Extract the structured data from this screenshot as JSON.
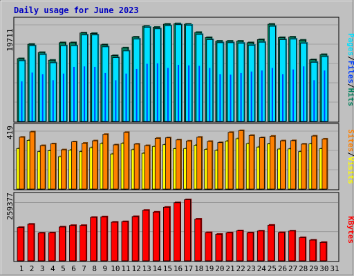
{
  "chart_data": {
    "type": "bar",
    "title": "Daily usage for June 2023",
    "colors": {
      "hits": "#00805c",
      "files": "#0040ff",
      "pages": "#00e0ff",
      "visits": "#ffff00",
      "sites": "#ff8000",
      "kbytes": "#ff0000",
      "background": "#c0c0c0",
      "weekend_day": "#00805c",
      "title": "#0000c0"
    },
    "legend": {
      "top": [
        {
          "text": "Pages",
          "key": "pages"
        },
        {
          "text": "/",
          "key": "sep"
        },
        {
          "text": "Files",
          "key": "files"
        },
        {
          "text": "/",
          "key": "sep"
        },
        {
          "text": "Hits",
          "key": "hits"
        }
      ],
      "middle": [
        {
          "text": "Sites",
          "key": "sites"
        },
        {
          "text": "/",
          "key": "sep"
        },
        {
          "text": "Visits",
          "key": "visits"
        }
      ],
      "bottom": [
        {
          "text": "KBytes",
          "key": "kbytes"
        }
      ]
    },
    "days": [
      "1",
      "2",
      "3",
      "4",
      "5",
      "6",
      "7",
      "8",
      "9",
      "10",
      "11",
      "12",
      "13",
      "14",
      "15",
      "16",
      "17",
      "18",
      "19",
      "20",
      "21",
      "22",
      "23",
      "24",
      "25",
      "26",
      "27",
      "28",
      "29",
      "30",
      "31"
    ],
    "weekend_days": [
      "3",
      "4",
      "10",
      "11",
      "17",
      "18",
      "24",
      "25",
      "31"
    ],
    "panels": {
      "hits_files_pages": {
        "ymax_label": "19711",
        "ymax": 19711,
        "series": [
          {
            "name": "Hits",
            "key": "hits",
            "values": [
              12200,
              15000,
              13400,
              11900,
              15300,
              15300,
              17200,
              17100,
              14900,
              12800,
              14300,
              16400,
              18500,
              18300,
              18900,
              19000,
              18900,
              17300,
              16300,
              15600,
              15600,
              15600,
              15300,
              15900,
              18900,
              16300,
              16400,
              15800,
              12000,
              13000,
              null
            ]
          },
          {
            "name": "Files",
            "key": "files",
            "values": [
              7800,
              9500,
              9200,
              8000,
              9300,
              10600,
              10700,
              10600,
              9400,
              8000,
              9300,
              10200,
              11200,
              11300,
              10400,
              11000,
              10900,
              10800,
              10400,
              9200,
              9100,
              9400,
              9700,
              9900,
              10400,
              9200,
              10100,
              10700,
              8000,
              9900,
              null
            ]
          },
          {
            "name": "Pages",
            "key": "pages",
            "values": [
              11800,
              14700,
              13000,
              11400,
              14700,
              14700,
              16800,
              16800,
              14500,
              12400,
              13700,
              16000,
              18300,
              18000,
              18600,
              18800,
              18700,
              16900,
              15900,
              15300,
              15300,
              15200,
              14800,
              15400,
              18500,
              15900,
              16000,
              15200,
              11500,
              12600,
              null
            ]
          }
        ]
      },
      "sites_visits": {
        "ymax_label": "419",
        "ymax": 419,
        "series": [
          {
            "name": "Sites",
            "key": "sites",
            "values": [
              346,
              382,
              290,
              302,
              262,
              315,
              306,
              322,
              365,
              295,
              378,
              300,
              290,
              339,
              342,
              328,
              321,
              346,
              318,
              310,
              378,
              390,
              358,
              343,
              353,
              322,
              323,
              300,
              354,
              334,
              null
            ]
          },
          {
            "name": "Visits",
            "key": "visits",
            "values": [
              270,
              325,
              250,
              256,
              216,
              260,
              250,
              276,
              304,
              234,
              305,
              263,
              239,
              284,
              296,
              269,
              270,
              292,
              265,
              258,
              320,
              336,
              303,
              280,
              301,
              267,
              268,
              250,
              302,
              269,
              null
            ]
          }
        ]
      },
      "kbytes": {
        "ymax_label": "259377",
        "ymax": 259377,
        "series": [
          {
            "name": "KBytes",
            "key": "kbytes",
            "values": [
              132000,
              145000,
              110000,
              111000,
              134000,
              140000,
              140000,
              172000,
              174000,
              153000,
              155000,
              175000,
              200000,
              193000,
              212000,
              230000,
              242000,
              165000,
              112000,
              105000,
              111000,
              119000,
              111000,
              118000,
              141000,
              112000,
              118000,
              92000,
              82000,
              73000,
              null
            ]
          }
        ]
      }
    }
  }
}
